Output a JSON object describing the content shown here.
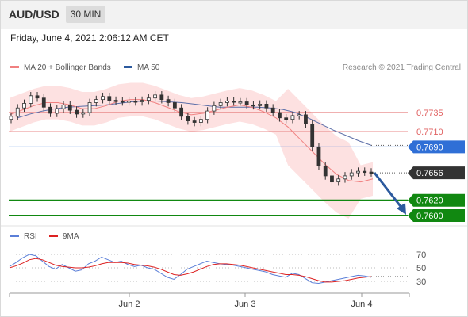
{
  "header": {
    "symbol": "AUD/USD",
    "timeframe": "30 MIN"
  },
  "timestamp": "Friday, June 4, 2021 2:06:12 AM CET",
  "legend": {
    "ma20": "MA 20 + Bollinger Bands",
    "ma50": "MA 50",
    "credit": "Research © 2021 Trading Central"
  },
  "rsi_legend": {
    "rsi": "RSI",
    "ma": "9MA"
  },
  "colors": {
    "candle": "#333333",
    "ma20": "#f08080",
    "band": "#fcd9d9",
    "ma50": "#5b6ea8",
    "resistance": "#e06060",
    "pivot": "#2f6fd6",
    "support": "#118811",
    "current": "#333333",
    "rsi": "#5b7fd8",
    "rsi_ma": "#dd2222",
    "arrow": "#2c5a9e"
  },
  "chart_data": [
    {
      "type": "line",
      "subtype": "candlestick",
      "x_ticks": [
        "Jun 2",
        "Jun 3",
        "Jun 4"
      ],
      "y_axis_unit": "AUD/USD",
      "levels": [
        {
          "label": "0.7735",
          "value": 0.7735,
          "kind": "resistance"
        },
        {
          "label": "0.7710",
          "value": 0.771,
          "kind": "resistance"
        },
        {
          "label": "0.7690",
          "value": 0.769,
          "kind": "pivot"
        },
        {
          "label": "0.7656",
          "value": 0.7656,
          "kind": "current"
        },
        {
          "label": "0.7620",
          "value": 0.762,
          "kind": "support"
        },
        {
          "label": "0.7600",
          "value": 0.76,
          "kind": "support"
        }
      ],
      "series": [
        {
          "name": "MA 20 + Bollinger Bands",
          "values": [
            0.7732,
            0.7738,
            0.7744,
            0.7748,
            0.7748,
            0.7745,
            0.774,
            0.774,
            0.7744,
            0.775,
            0.7752,
            0.7752,
            0.7748,
            0.7742,
            0.7736,
            0.7732,
            0.7734,
            0.7738,
            0.7742,
            0.7745,
            0.7742,
            0.7736,
            0.7728,
            0.7716,
            0.77,
            0.7684,
            0.7668,
            0.7654,
            0.7646,
            0.7644,
            0.7648
          ]
        },
        {
          "name": "MA 50",
          "values": [
            0.7728,
            0.7733,
            0.7737,
            0.774,
            0.7742,
            0.7743,
            0.7744,
            0.7745,
            0.7747,
            0.7749,
            0.775,
            0.775,
            0.7749,
            0.7748,
            0.7746,
            0.7744,
            0.7742,
            0.7742,
            0.7742,
            0.7742,
            0.7741,
            0.7739,
            0.7735,
            0.7728,
            0.772,
            0.7712,
            0.7705,
            0.7698,
            0.7692
          ]
        }
      ],
      "candles_close": [
        0.773,
        0.7741,
        0.7747,
        0.7757,
        0.7754,
        0.7742,
        0.7734,
        0.774,
        0.7745,
        0.7738,
        0.7733,
        0.7735,
        0.7748,
        0.7752,
        0.7756,
        0.7751,
        0.775,
        0.7749,
        0.775,
        0.7749,
        0.7751,
        0.7754,
        0.7758,
        0.7752,
        0.7748,
        0.7741,
        0.773,
        0.7724,
        0.7722,
        0.7726,
        0.7737,
        0.7744,
        0.7748,
        0.775,
        0.7749,
        0.7749,
        0.7745,
        0.7744,
        0.7746,
        0.7741,
        0.7735,
        0.7728,
        0.7726,
        0.7731,
        0.7732,
        0.772,
        0.769,
        0.7665,
        0.7652,
        0.7644,
        0.7648,
        0.7652,
        0.7656,
        0.7658,
        0.7657,
        0.7656
      ]
    },
    {
      "type": "line",
      "title": "RSI",
      "y_ticks": [
        70,
        50,
        30
      ],
      "ylim": [
        20,
        80
      ],
      "series": [
        {
          "name": "RSI",
          "values": [
            52,
            58,
            65,
            70,
            68,
            60,
            52,
            48,
            55,
            50,
            45,
            47,
            56,
            60,
            66,
            62,
            58,
            60,
            55,
            52,
            54,
            50,
            48,
            42,
            36,
            33,
            40,
            48,
            52,
            56,
            60,
            58,
            56,
            55,
            54,
            52,
            50,
            48,
            46,
            44,
            40,
            38,
            36,
            42,
            40,
            34,
            28,
            27,
            29,
            31,
            33,
            35,
            37,
            39,
            38,
            36
          ]
        },
        {
          "name": "9MA",
          "values": [
            50,
            53,
            57,
            62,
            64,
            62,
            58,
            54,
            52,
            51,
            50,
            50,
            51,
            53,
            56,
            58,
            58,
            58,
            57,
            55,
            54,
            53,
            51,
            48,
            44,
            40,
            39,
            41,
            44,
            48,
            52,
            55,
            56,
            56,
            55,
            54,
            52,
            50,
            48,
            46,
            44,
            42,
            40,
            40,
            39,
            37,
            34,
            31,
            29,
            29,
            30,
            31,
            33,
            35,
            36,
            37
          ]
        }
      ]
    }
  ]
}
